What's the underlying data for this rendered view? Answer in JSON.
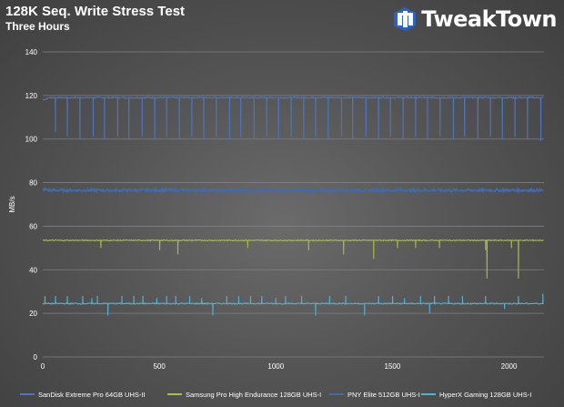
{
  "chart_data": {
    "type": "line",
    "title": "128K Seq. Write Stress Test",
    "subtitle": "Three Hours",
    "xlabel": "",
    "ylabel": "MB/s",
    "xlim": [
      0,
      2150
    ],
    "ylim": [
      0,
      140
    ],
    "xticks": [
      0,
      500,
      1000,
      1500,
      2000
    ],
    "yticks": [
      0,
      20,
      40,
      60,
      80,
      100,
      120,
      140
    ],
    "grid": true,
    "legend_position": "bottom",
    "series": [
      {
        "name": "SanDisk Extreme Pro 64GB UHS-II",
        "color": "#4a76c2",
        "base": 119,
        "start": 118,
        "noise": 0.3,
        "dips": [
          [
            55,
            103
          ],
          [
            105,
            101
          ],
          [
            160,
            100
          ],
          [
            215,
            101
          ],
          [
            265,
            100
          ],
          [
            320,
            101
          ],
          [
            370,
            100
          ],
          [
            425,
            101
          ],
          [
            480,
            100
          ],
          [
            530,
            101
          ],
          [
            585,
            100
          ],
          [
            640,
            101
          ],
          [
            690,
            100
          ],
          [
            745,
            101
          ],
          [
            800,
            100
          ],
          [
            850,
            101
          ],
          [
            905,
            100
          ],
          [
            960,
            101
          ],
          [
            1010,
            100
          ],
          [
            1065,
            101
          ],
          [
            1120,
            100
          ],
          [
            1170,
            101
          ],
          [
            1225,
            100
          ],
          [
            1280,
            101
          ],
          [
            1330,
            100
          ],
          [
            1385,
            101
          ],
          [
            1440,
            100
          ],
          [
            1490,
            101
          ],
          [
            1545,
            100
          ],
          [
            1600,
            101
          ],
          [
            1650,
            100
          ],
          [
            1705,
            101
          ],
          [
            1760,
            100
          ],
          [
            1810,
            101
          ],
          [
            1865,
            100
          ],
          [
            1920,
            101
          ],
          [
            1970,
            100
          ],
          [
            2025,
            101
          ],
          [
            2080,
            100
          ],
          [
            2135,
            99
          ]
        ]
      },
      {
        "name": "Samsung Pro High Endurance 128GB UHS-I",
        "color": "#a8c040",
        "base": 53.5,
        "start": 53.5,
        "noise": 0.2,
        "dips": [
          [
            250,
            50
          ],
          [
            500,
            49
          ],
          [
            580,
            47
          ],
          [
            880,
            50
          ],
          [
            1140,
            49
          ],
          [
            1290,
            47
          ],
          [
            1420,
            45
          ],
          [
            1520,
            50
          ],
          [
            1600,
            50
          ],
          [
            1700,
            50
          ],
          [
            1900,
            49
          ],
          [
            1905,
            36
          ],
          [
            2010,
            50
          ],
          [
            2040,
            36
          ]
        ]
      },
      {
        "name": "PNY Elite 512GB UHS-I",
        "color": "#3f6bb0",
        "base": 76.5,
        "start": 77,
        "noise": 0.6,
        "dips": []
      },
      {
        "name": "HyperX Gaming 128GB UHS-I",
        "color": "#4fb3d9",
        "base": 24.5,
        "start": 24.5,
        "noise": 0.25,
        "dips": [
          [
            10,
            28
          ],
          [
            55,
            28
          ],
          [
            105,
            28
          ],
          [
            170,
            28
          ],
          [
            210,
            27
          ],
          [
            235,
            28
          ],
          [
            280,
            19
          ],
          [
            340,
            28
          ],
          [
            390,
            28
          ],
          [
            430,
            28
          ],
          [
            490,
            27
          ],
          [
            530,
            28
          ],
          [
            570,
            28
          ],
          [
            630,
            28
          ],
          [
            680,
            27
          ],
          [
            730,
            19
          ],
          [
            790,
            28
          ],
          [
            840,
            28
          ],
          [
            890,
            28
          ],
          [
            940,
            28
          ],
          [
            1000,
            27
          ],
          [
            1040,
            28
          ],
          [
            1110,
            28
          ],
          [
            1170,
            19
          ],
          [
            1230,
            28
          ],
          [
            1300,
            28
          ],
          [
            1380,
            19
          ],
          [
            1440,
            28
          ],
          [
            1500,
            28
          ],
          [
            1550,
            27
          ],
          [
            1620,
            28
          ],
          [
            1660,
            20
          ],
          [
            1680,
            28
          ],
          [
            1740,
            28
          ],
          [
            1800,
            28
          ],
          [
            1900,
            28
          ],
          [
            1980,
            22
          ],
          [
            2040,
            28
          ],
          [
            2145,
            29
          ]
        ]
      }
    ]
  },
  "brand": {
    "name": "TweakTown",
    "icon": "tweaktown-logo-icon"
  }
}
